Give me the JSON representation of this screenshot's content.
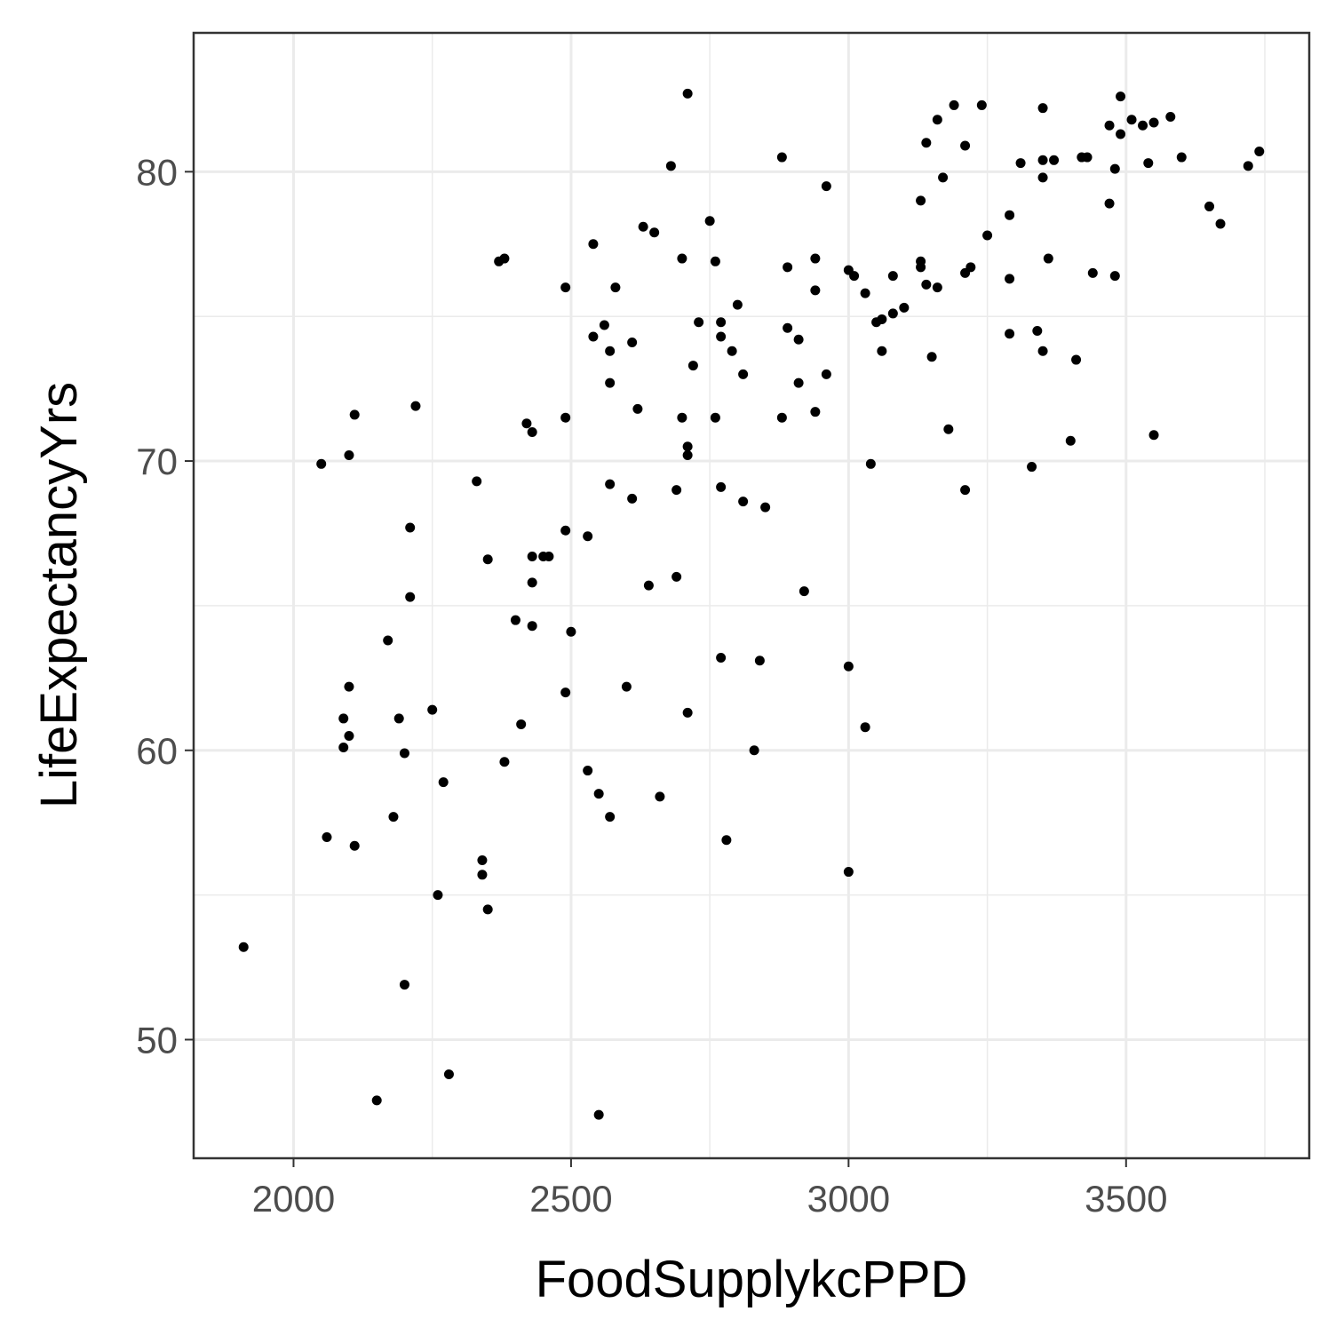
{
  "chart_data": {
    "type": "scatter",
    "title": "",
    "xlabel": "FoodSupplykcPPD",
    "ylabel": "LifeExpectancyYrs",
    "xlim": [
      1820,
      3830
    ],
    "ylim": [
      45.9,
      84.8
    ],
    "x_ticks": [
      2000,
      2500,
      3000,
      3500
    ],
    "y_ticks": [
      50,
      60,
      70,
      80
    ],
    "x_tick_labels": [
      "2000",
      "2500",
      "3000",
      "3500"
    ],
    "y_tick_labels": [
      "50",
      "60",
      "70",
      "80"
    ],
    "grid": true,
    "legend": "none",
    "point_color": "#000000",
    "points": [
      [
        1910,
        53.2
      ],
      [
        2050,
        69.9
      ],
      [
        2060,
        57.0
      ],
      [
        2090,
        61.1
      ],
      [
        2090,
        60.1
      ],
      [
        2100,
        70.2
      ],
      [
        2100,
        62.2
      ],
      [
        2100,
        60.5
      ],
      [
        2110,
        71.6
      ],
      [
        2110,
        56.7
      ],
      [
        2150,
        47.9
      ],
      [
        2170,
        63.8
      ],
      [
        2180,
        57.7
      ],
      [
        2190,
        61.1
      ],
      [
        2200,
        59.9
      ],
      [
        2200,
        51.9
      ],
      [
        2210,
        67.7
      ],
      [
        2210,
        65.3
      ],
      [
        2220,
        71.9
      ],
      [
        2250,
        61.4
      ],
      [
        2260,
        55.0
      ],
      [
        2270,
        58.9
      ],
      [
        2280,
        48.8
      ],
      [
        2330,
        69.3
      ],
      [
        2340,
        56.2
      ],
      [
        2340,
        55.7
      ],
      [
        2350,
        66.6
      ],
      [
        2350,
        54.5
      ],
      [
        2370,
        76.9
      ],
      [
        2380,
        77.0
      ],
      [
        2380,
        59.6
      ],
      [
        2400,
        64.5
      ],
      [
        2410,
        60.9
      ],
      [
        2420,
        71.3
      ],
      [
        2430,
        71.0
      ],
      [
        2430,
        66.7
      ],
      [
        2430,
        65.8
      ],
      [
        2430,
        64.3
      ],
      [
        2450,
        66.7
      ],
      [
        2460,
        66.7
      ],
      [
        2490,
        76.0
      ],
      [
        2490,
        71.5
      ],
      [
        2490,
        67.6
      ],
      [
        2490,
        62.0
      ],
      [
        2500,
        64.1
      ],
      [
        2530,
        67.4
      ],
      [
        2530,
        59.3
      ],
      [
        2540,
        77.5
      ],
      [
        2540,
        74.3
      ],
      [
        2550,
        58.5
      ],
      [
        2550,
        47.4
      ],
      [
        2560,
        74.7
      ],
      [
        2570,
        73.8
      ],
      [
        2570,
        72.7
      ],
      [
        2570,
        69.2
      ],
      [
        2570,
        57.7
      ],
      [
        2580,
        76.0
      ],
      [
        2600,
        62.2
      ],
      [
        2610,
        74.1
      ],
      [
        2610,
        68.7
      ],
      [
        2620,
        71.8
      ],
      [
        2630,
        78.1
      ],
      [
        2640,
        65.7
      ],
      [
        2650,
        77.9
      ],
      [
        2660,
        58.4
      ],
      [
        2680,
        80.2
      ],
      [
        2690,
        69.0
      ],
      [
        2690,
        66.0
      ],
      [
        2700,
        77.0
      ],
      [
        2700,
        71.5
      ],
      [
        2710,
        82.7
      ],
      [
        2710,
        70.5
      ],
      [
        2710,
        70.2
      ],
      [
        2710,
        61.3
      ],
      [
        2720,
        73.3
      ],
      [
        2730,
        74.8
      ],
      [
        2750,
        78.3
      ],
      [
        2760,
        76.9
      ],
      [
        2760,
        71.5
      ],
      [
        2770,
        74.8
      ],
      [
        2770,
        74.3
      ],
      [
        2770,
        69.1
      ],
      [
        2770,
        63.2
      ],
      [
        2780,
        56.9
      ],
      [
        2790,
        73.8
      ],
      [
        2800,
        75.4
      ],
      [
        2810,
        73.0
      ],
      [
        2810,
        68.6
      ],
      [
        2830,
        60.0
      ],
      [
        2840,
        63.1
      ],
      [
        2850,
        68.4
      ],
      [
        2880,
        80.5
      ],
      [
        2880,
        71.5
      ],
      [
        2890,
        76.7
      ],
      [
        2890,
        74.6
      ],
      [
        2910,
        74.2
      ],
      [
        2910,
        72.7
      ],
      [
        2920,
        65.5
      ],
      [
        2940,
        77.0
      ],
      [
        2940,
        75.9
      ],
      [
        2940,
        71.7
      ],
      [
        2960,
        79.5
      ],
      [
        2960,
        73.0
      ],
      [
        3000,
        76.6
      ],
      [
        3000,
        62.9
      ],
      [
        3000,
        55.8
      ],
      [
        3010,
        76.4
      ],
      [
        3030,
        75.8
      ],
      [
        3030,
        60.8
      ],
      [
        3040,
        69.9
      ],
      [
        3050,
        74.8
      ],
      [
        3060,
        74.9
      ],
      [
        3060,
        73.8
      ],
      [
        3080,
        75.1
      ],
      [
        3080,
        76.4
      ],
      [
        3100,
        75.3
      ],
      [
        3130,
        79.0
      ],
      [
        3130,
        76.9
      ],
      [
        3130,
        76.7
      ],
      [
        3140,
        81.0
      ],
      [
        3140,
        76.1
      ],
      [
        3150,
        73.6
      ],
      [
        3160,
        81.8
      ],
      [
        3160,
        76.0
      ],
      [
        3170,
        79.8
      ],
      [
        3180,
        71.1
      ],
      [
        3190,
        82.3
      ],
      [
        3210,
        80.9
      ],
      [
        3210,
        76.5
      ],
      [
        3210,
        69.0
      ],
      [
        3220,
        76.7
      ],
      [
        3240,
        82.3
      ],
      [
        3250,
        77.8
      ],
      [
        3290,
        78.5
      ],
      [
        3290,
        76.3
      ],
      [
        3290,
        74.4
      ],
      [
        3310,
        80.3
      ],
      [
        3330,
        69.8
      ],
      [
        3340,
        74.5
      ],
      [
        3350,
        82.2
      ],
      [
        3350,
        80.4
      ],
      [
        3350,
        79.8
      ],
      [
        3350,
        73.8
      ],
      [
        3360,
        77.0
      ],
      [
        3370,
        80.4
      ],
      [
        3400,
        70.7
      ],
      [
        3410,
        73.5
      ],
      [
        3420,
        80.5
      ],
      [
        3430,
        80.5
      ],
      [
        3440,
        76.5
      ],
      [
        3470,
        81.6
      ],
      [
        3470,
        78.9
      ],
      [
        3480,
        80.1
      ],
      [
        3480,
        76.4
      ],
      [
        3490,
        82.6
      ],
      [
        3490,
        81.3
      ],
      [
        3510,
        81.8
      ],
      [
        3530,
        81.6
      ],
      [
        3540,
        80.3
      ],
      [
        3550,
        81.7
      ],
      [
        3550,
        70.9
      ],
      [
        3580,
        81.9
      ],
      [
        3600,
        80.5
      ],
      [
        3650,
        78.8
      ],
      [
        3670,
        78.2
      ],
      [
        3720,
        80.2
      ],
      [
        3740,
        80.7
      ]
    ]
  }
}
